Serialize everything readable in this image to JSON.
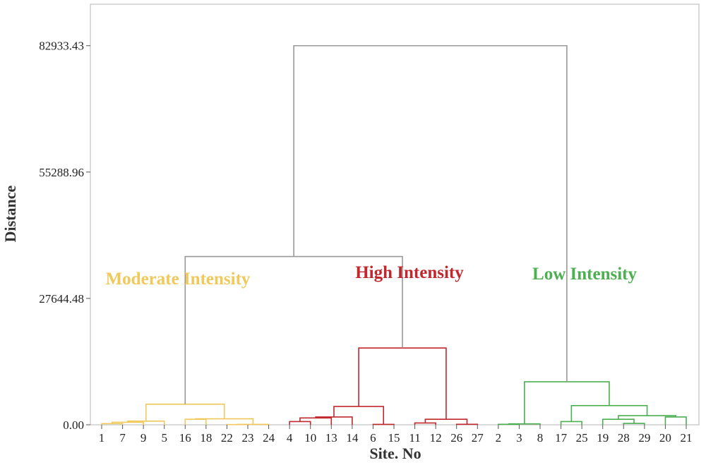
{
  "chart_data": {
    "type": "dendrogram",
    "xlabel": "Site. No",
    "ylabel": "Distance",
    "ylim": [
      0,
      92000
    ],
    "yticks": [
      0.0,
      27644.48,
      55288.96,
      82933.43
    ],
    "ytick_labels": [
      "0.00",
      "27644.48",
      "55288.96",
      "82933.43"
    ],
    "grid": false,
    "leaves": [
      "1",
      "7",
      "9",
      "5",
      "16",
      "18",
      "22",
      "23",
      "24",
      "4",
      "10",
      "13",
      "14",
      "6",
      "15",
      "11",
      "12",
      "26",
      "27",
      "2",
      "3",
      "8",
      "17",
      "25",
      "19",
      "28",
      "29",
      "20",
      "21"
    ],
    "clusters": [
      {
        "name": "Moderate Intensity",
        "color": "#f0c95a",
        "leaves": [
          "1",
          "7",
          "9",
          "5",
          "16",
          "18",
          "22",
          "23",
          "24"
        ]
      },
      {
        "name": "High Intensity",
        "color": "#c0282e",
        "leaves": [
          "4",
          "10",
          "13",
          "14",
          "6",
          "15",
          "11",
          "12",
          "26",
          "27"
        ]
      },
      {
        "name": "Low Intensity",
        "color": "#4caf50",
        "leaves": [
          "2",
          "3",
          "8",
          "17",
          "25",
          "19",
          "28",
          "29",
          "20",
          "21"
        ]
      }
    ],
    "link_color": "#999999",
    "merges": [
      {
        "a": "L:22",
        "b": "L:23",
        "height": 50,
        "color": "#f0c95a"
      },
      {
        "a": "M:0",
        "b": "L:24",
        "height": 80,
        "color": "#f0c95a"
      },
      {
        "a": "L:1",
        "b": "L:7",
        "height": 250,
        "color": "#f0c95a"
      },
      {
        "a": "M:2",
        "b": "L:9",
        "height": 550,
        "color": "#f0c95a"
      },
      {
        "a": "M:3",
        "b": "L:5",
        "height": 800,
        "color": "#f0c95a"
      },
      {
        "a": "L:16",
        "b": "L:18",
        "height": 1200,
        "color": "#f0c95a"
      },
      {
        "a": "M:5",
        "b": "M:1",
        "height": 1300,
        "color": "#f0c95a"
      },
      {
        "a": "M:4",
        "b": "M:6",
        "height": 4500,
        "color": "#f0c95a"
      },
      {
        "a": "L:6",
        "b": "L:15",
        "height": 80,
        "color": "#c0282e"
      },
      {
        "a": "L:26",
        "b": "L:27",
        "height": 100,
        "color": "#c0282e"
      },
      {
        "a": "L:11",
        "b": "L:12",
        "height": 400,
        "color": "#c0282e"
      },
      {
        "a": "M:10",
        "b": "M:9",
        "height": 1200,
        "color": "#c0282e"
      },
      {
        "a": "L:4",
        "b": "L:10",
        "height": 700,
        "color": "#c0282e"
      },
      {
        "a": "M:12",
        "b": "L:13",
        "height": 1500,
        "color": "#c0282e"
      },
      {
        "a": "M:13",
        "b": "L:14",
        "height": 1700,
        "color": "#c0282e"
      },
      {
        "a": "M:14",
        "b": "M:8",
        "height": 4000,
        "color": "#c0282e"
      },
      {
        "a": "M:15",
        "b": "M:11",
        "height": 16800,
        "color": "#c0282e"
      },
      {
        "a": "L:2",
        "b": "L:3",
        "height": 100,
        "color": "#4caf50"
      },
      {
        "a": "M:17",
        "b": "L:8",
        "height": 200,
        "color": "#4caf50"
      },
      {
        "a": "L:17",
        "b": "L:25",
        "height": 700,
        "color": "#4caf50"
      },
      {
        "a": "L:28",
        "b": "L:29",
        "height": 300,
        "color": "#4caf50"
      },
      {
        "a": "L:19",
        "b": "M:20",
        "height": 1200,
        "color": "#4caf50"
      },
      {
        "a": "L:20",
        "b": "L:21",
        "height": 1700,
        "color": "#4caf50"
      },
      {
        "a": "M:21",
        "b": "M:22",
        "height": 2000,
        "color": "#4caf50"
      },
      {
        "a": "M:19",
        "b": "M:23",
        "height": 4200,
        "color": "#4caf50"
      },
      {
        "a": "M:18",
        "b": "M:24",
        "height": 9400,
        "color": "#4caf50"
      },
      {
        "a": "M:7",
        "b": "M:16",
        "height": 36800,
        "color": "#999999"
      },
      {
        "a": "M:26",
        "b": "M:25",
        "height": 82933,
        "color": "#999999"
      }
    ]
  }
}
